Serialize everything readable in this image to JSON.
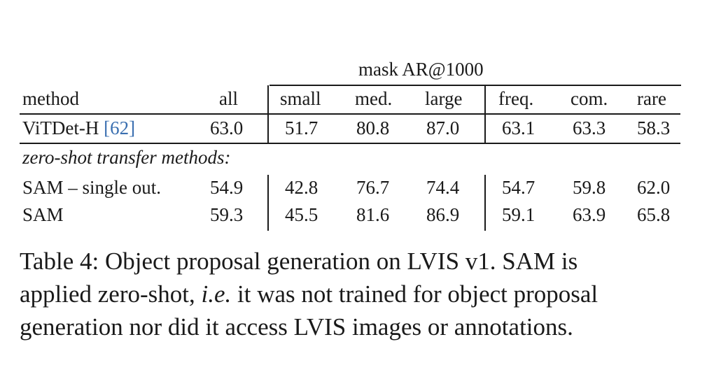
{
  "table": {
    "group_header": "mask AR@1000",
    "columns": [
      "method",
      "all",
      "small",
      "med.",
      "large",
      "freq.",
      "com.",
      "rare"
    ],
    "baseline": {
      "method": "ViTDet-H",
      "cite": "[62]",
      "values": [
        "63.0",
        "51.7",
        "80.8",
        "87.0",
        "63.1",
        "63.3",
        "58.3"
      ]
    },
    "section_label": "zero-shot transfer methods:",
    "rows": [
      {
        "method": "SAM – single out.",
        "values": [
          "54.9",
          "42.8",
          "76.7",
          "74.4",
          "54.7",
          "59.8",
          "62.0"
        ]
      },
      {
        "method": "SAM",
        "values": [
          "59.3",
          "45.5",
          "81.6",
          "86.9",
          "59.1",
          "63.9",
          "65.8"
        ]
      }
    ]
  },
  "caption": {
    "line1": "Table 4: Object proposal generation on LVIS v1. SAM is",
    "line2_pre": "applied zero-shot,",
    "line2_ital": "i.e.",
    "line2_post": "it was not trained for object proposal",
    "line3": "generation nor did it access LVIS images or annotations."
  }
}
